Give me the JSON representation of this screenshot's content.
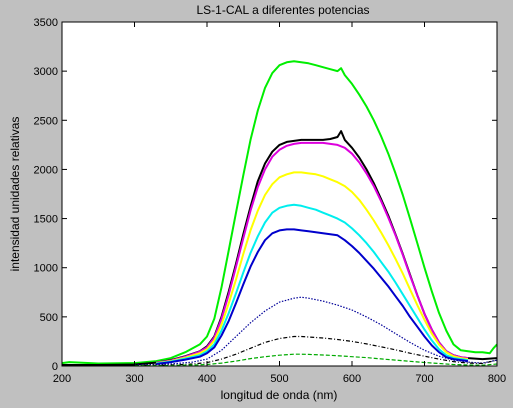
{
  "chart_data": {
    "type": "line",
    "title": "LS-1-CAL a diferentes potencias",
    "xlabel": "longitud de onda (nm)",
    "ylabel": "intensidad unidades relativas",
    "xlim": [
      200,
      800
    ],
    "ylim": [
      0,
      3500
    ],
    "xticks": [
      200,
      300,
      400,
      500,
      600,
      700,
      800
    ],
    "yticks": [
      0,
      500,
      1000,
      1500,
      2000,
      2500,
      3000,
      3500
    ],
    "grid": false,
    "legend": "none",
    "background_color": "#c0c0c0",
    "plot_background_color": "#ffffff",
    "series": [
      {
        "color": "#00ee00",
        "style": "solid",
        "x": [
          200,
          210,
          250,
          300,
          330,
          350,
          370,
          390,
          400,
          410,
          420,
          430,
          440,
          450,
          460,
          470,
          480,
          490,
          500,
          510,
          520,
          530,
          540,
          550,
          560,
          570,
          580,
          585,
          590,
          600,
          610,
          620,
          630,
          640,
          650,
          660,
          670,
          680,
          690,
          700,
          710,
          720,
          730,
          740,
          750,
          760,
          770,
          780,
          790,
          795,
          800
        ],
        "y": [
          30,
          40,
          25,
          30,
          50,
          80,
          140,
          220,
          300,
          480,
          800,
          1180,
          1560,
          1940,
          2300,
          2600,
          2830,
          2980,
          3060,
          3090,
          3100,
          3090,
          3080,
          3060,
          3040,
          3020,
          3000,
          3030,
          2960,
          2870,
          2760,
          2640,
          2500,
          2340,
          2160,
          1960,
          1740,
          1500,
          1250,
          1000,
          760,
          540,
          360,
          220,
          160,
          150,
          140,
          140,
          130,
          180,
          220
        ]
      },
      {
        "color": "#000000",
        "style": "solid",
        "x": [
          200,
          250,
          300,
          330,
          350,
          370,
          390,
          400,
          410,
          420,
          430,
          440,
          450,
          460,
          470,
          480,
          490,
          500,
          510,
          520,
          530,
          540,
          550,
          560,
          570,
          580,
          585,
          590,
          600,
          610,
          620,
          630,
          640,
          650,
          660,
          670,
          680,
          690,
          700,
          710,
          720,
          730,
          740,
          750,
          760,
          780,
          800
        ],
        "y": [
          10,
          10,
          15,
          35,
          60,
          100,
          150,
          200,
          300,
          500,
          760,
          1040,
          1340,
          1620,
          1880,
          2060,
          2180,
          2250,
          2280,
          2290,
          2300,
          2300,
          2300,
          2300,
          2310,
          2330,
          2390,
          2300,
          2220,
          2120,
          2000,
          1860,
          1700,
          1530,
          1340,
          1140,
          930,
          720,
          530,
          370,
          240,
          150,
          110,
          90,
          80,
          70,
          80
        ]
      },
      {
        "color": "#dd00dd",
        "style": "solid",
        "x": [
          330,
          350,
          370,
          390,
          400,
          410,
          420,
          430,
          440,
          450,
          460,
          470,
          480,
          490,
          500,
          510,
          520,
          530,
          540,
          550,
          560,
          570,
          580,
          590,
          600,
          610,
          620,
          630,
          640,
          650,
          660,
          670,
          680,
          690,
          700,
          710,
          720,
          730,
          740,
          750,
          760
        ],
        "y": [
          35,
          55,
          95,
          145,
          190,
          290,
          480,
          730,
          1010,
          1300,
          1580,
          1820,
          2000,
          2130,
          2200,
          2240,
          2260,
          2270,
          2270,
          2270,
          2270,
          2260,
          2250,
          2220,
          2160,
          2070,
          1960,
          1830,
          1680,
          1510,
          1330,
          1130,
          920,
          720,
          530,
          370,
          240,
          150,
          110,
          90,
          80
        ]
      },
      {
        "color": "#ffff00",
        "style": "solid",
        "x": [
          330,
          350,
          370,
          390,
          400,
          410,
          420,
          430,
          440,
          450,
          460,
          470,
          480,
          490,
          500,
          510,
          520,
          530,
          540,
          550,
          560,
          570,
          580,
          590,
          600,
          610,
          620,
          630,
          640,
          650,
          660,
          670,
          680,
          690,
          700,
          710,
          720,
          730,
          740,
          750,
          760
        ],
        "y": [
          30,
          50,
          85,
          130,
          170,
          260,
          420,
          640,
          880,
          1140,
          1380,
          1580,
          1740,
          1850,
          1920,
          1950,
          1970,
          1970,
          1960,
          1950,
          1930,
          1900,
          1870,
          1830,
          1770,
          1690,
          1590,
          1480,
          1360,
          1230,
          1090,
          940,
          780,
          620,
          470,
          330,
          220,
          140,
          100,
          80,
          70
        ]
      },
      {
        "color": "#00eeee",
        "style": "solid",
        "x": [
          330,
          350,
          370,
          390,
          400,
          410,
          420,
          430,
          440,
          450,
          460,
          470,
          480,
          490,
          500,
          510,
          520,
          530,
          540,
          550,
          560,
          570,
          580,
          590,
          600,
          610,
          620,
          630,
          640,
          650,
          660,
          670,
          680,
          690,
          700,
          710,
          720,
          730,
          740,
          750,
          760
        ],
        "y": [
          25,
          45,
          75,
          110,
          150,
          220,
          360,
          540,
          740,
          950,
          1150,
          1320,
          1460,
          1560,
          1610,
          1630,
          1640,
          1630,
          1610,
          1590,
          1560,
          1530,
          1500,
          1460,
          1400,
          1330,
          1250,
          1160,
          1060,
          960,
          850,
          730,
          610,
          490,
          370,
          260,
          170,
          110,
          80,
          70,
          60
        ]
      },
      {
        "color": "#0000cc",
        "style": "solid",
        "x": [
          330,
          350,
          370,
          390,
          400,
          410,
          420,
          430,
          440,
          450,
          460,
          470,
          480,
          490,
          500,
          510,
          520,
          530,
          540,
          550,
          560,
          570,
          580,
          590,
          600,
          610,
          620,
          630,
          640,
          650,
          660,
          670,
          680,
          690,
          700,
          710,
          720,
          730,
          740,
          750,
          760
        ],
        "y": [
          20,
          40,
          65,
          95,
          130,
          190,
          310,
          460,
          640,
          830,
          1010,
          1160,
          1280,
          1350,
          1380,
          1390,
          1390,
          1380,
          1370,
          1360,
          1350,
          1340,
          1330,
          1280,
          1220,
          1150,
          1070,
          990,
          900,
          810,
          710,
          610,
          500,
          400,
          300,
          210,
          140,
          90,
          70,
          60,
          50
        ]
      },
      {
        "color": "#000099",
        "style": "dotted",
        "x": [
          300,
          350,
          380,
          400,
          420,
          440,
          460,
          480,
          500,
          520,
          530,
          540,
          560,
          580,
          600,
          620,
          640,
          660,
          680,
          700,
          720,
          740,
          760,
          780,
          800
        ],
        "y": [
          10,
          20,
          40,
          70,
          160,
          300,
          440,
          560,
          650,
          690,
          700,
          690,
          660,
          620,
          570,
          500,
          420,
          330,
          240,
          160,
          100,
          60,
          40,
          30,
          60
        ]
      },
      {
        "color": "#000000",
        "style": "dashdot",
        "x": [
          300,
          350,
          380,
          400,
          420,
          440,
          460,
          480,
          500,
          520,
          530,
          540,
          560,
          580,
          600,
          620,
          640,
          660,
          680,
          700,
          720,
          740,
          760,
          780,
          800
        ],
        "y": [
          5,
          10,
          20,
          35,
          70,
          120,
          180,
          240,
          280,
          300,
          300,
          295,
          285,
          270,
          250,
          225,
          195,
          165,
          130,
          100,
          70,
          45,
          30,
          25,
          60
        ]
      },
      {
        "color": "#00aa00",
        "style": "dashed",
        "x": [
          300,
          350,
          380,
          400,
          420,
          440,
          460,
          480,
          500,
          520,
          530,
          540,
          560,
          580,
          600,
          620,
          640,
          660,
          680,
          700,
          720,
          740,
          760,
          780,
          800
        ],
        "y": [
          3,
          5,
          10,
          15,
          30,
          50,
          75,
          95,
          110,
          120,
          120,
          118,
          112,
          105,
          95,
          85,
          72,
          60,
          48,
          36,
          25,
          15,
          10,
          8,
          20
        ]
      }
    ]
  }
}
